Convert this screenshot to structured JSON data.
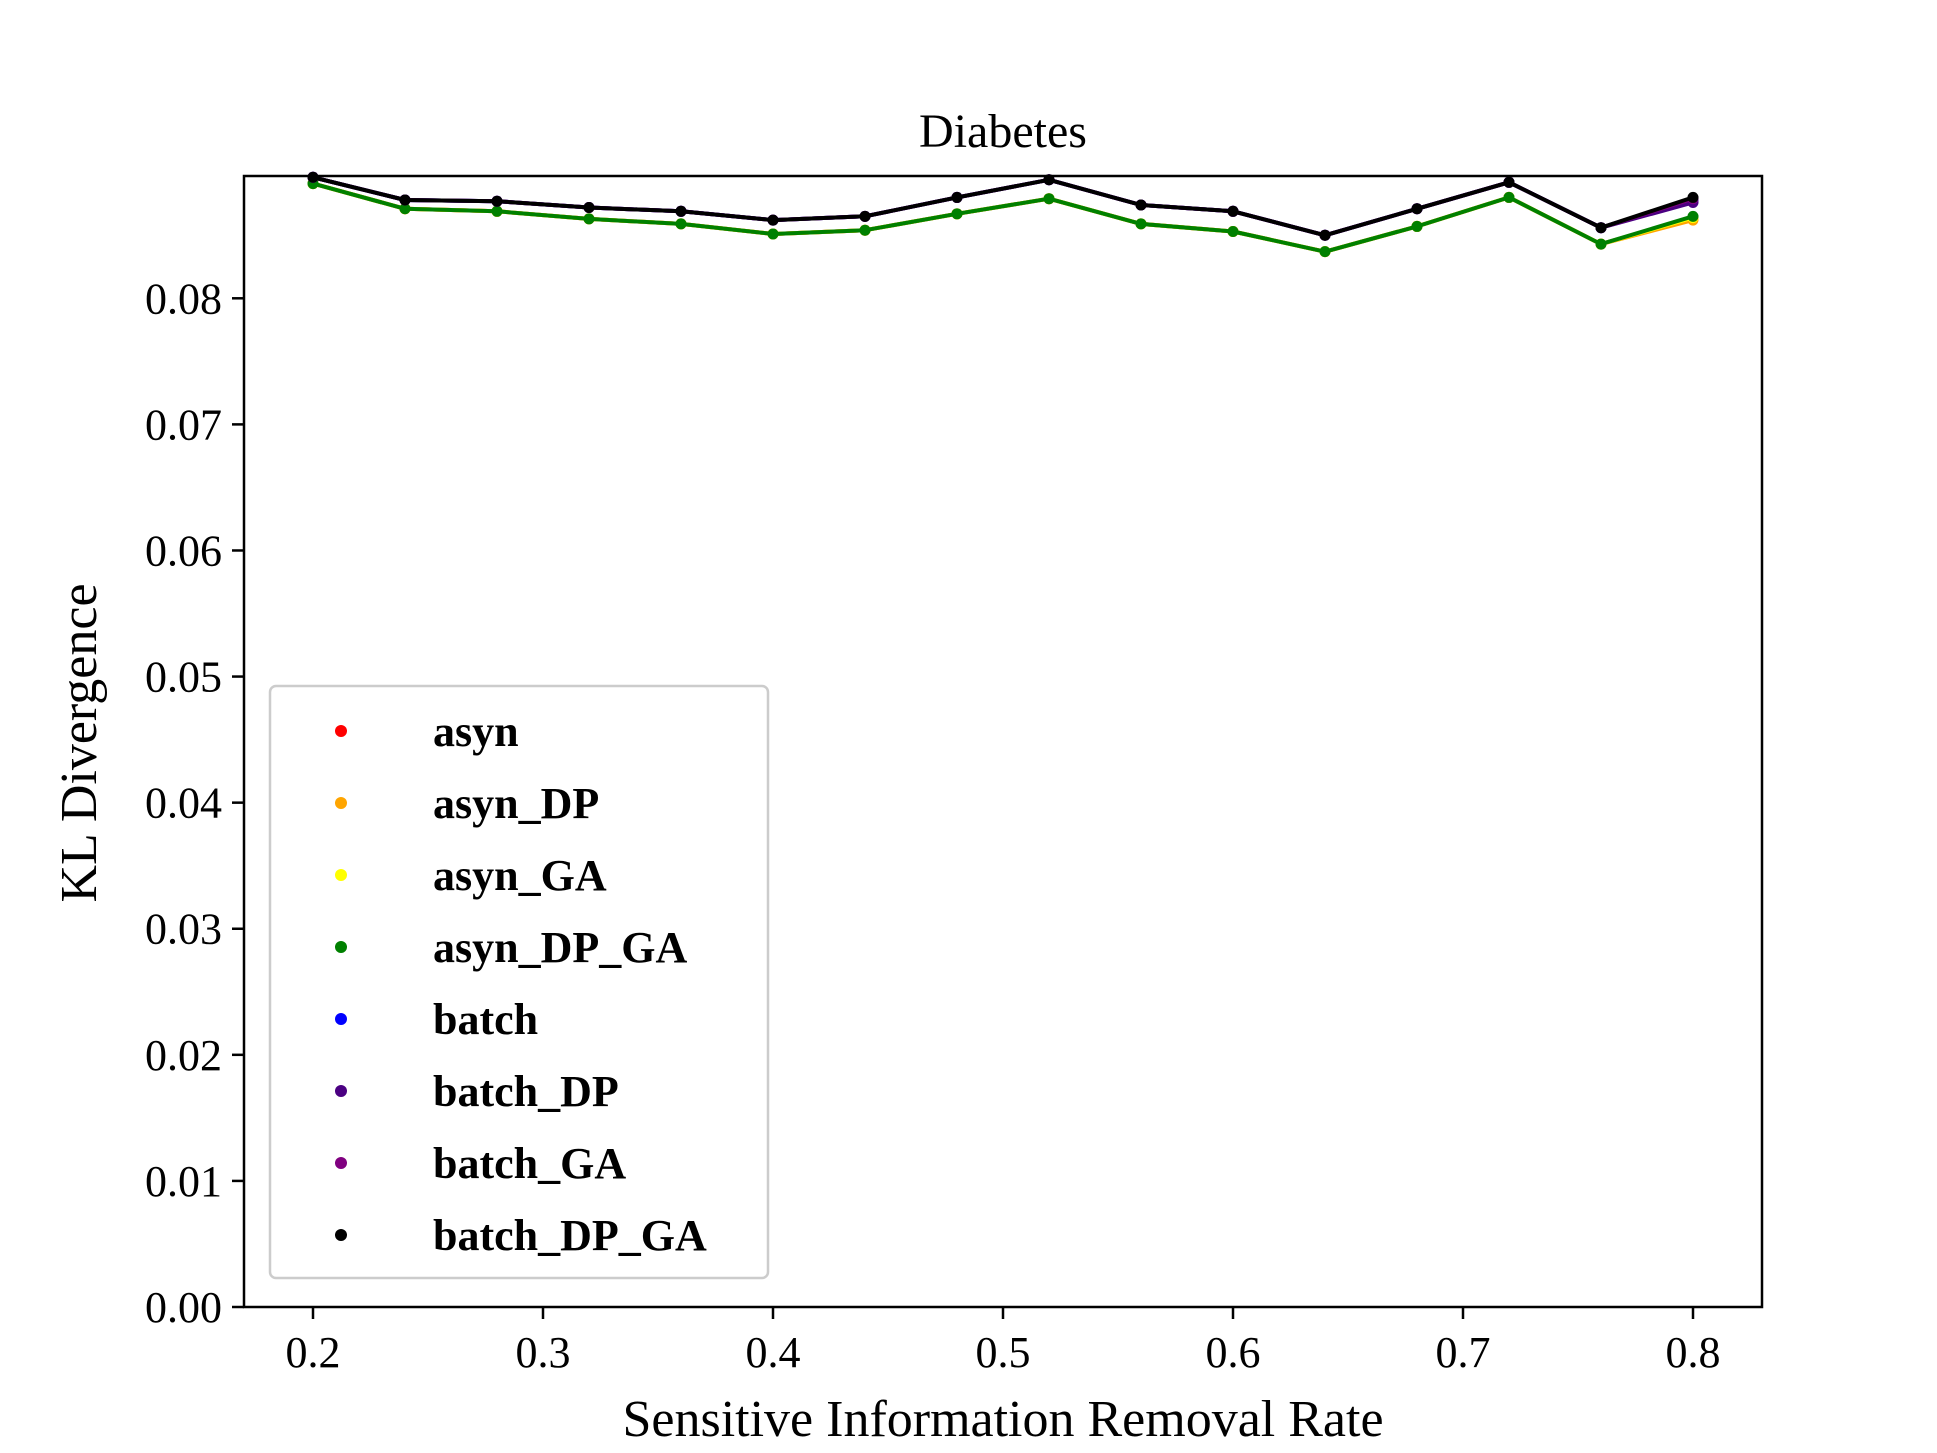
{
  "chart_data": {
    "type": "line",
    "title": "Diabetes",
    "xlabel": "Sensitive Information Removal Rate",
    "ylabel": "KL Divergence",
    "xlim": [
      0.17,
      0.83
    ],
    "ylim": [
      0.0,
      0.0897
    ],
    "xticks": [
      0.2,
      0.3,
      0.4,
      0.5,
      0.6,
      0.7,
      0.8
    ],
    "xtick_labels": [
      "0.2",
      "0.3",
      "0.4",
      "0.5",
      "0.6",
      "0.7",
      "0.8"
    ],
    "yticks": [
      0.0,
      0.01,
      0.02,
      0.03,
      0.04,
      0.05,
      0.06,
      0.07,
      0.08
    ],
    "ytick_labels": [
      "0.00",
      "0.01",
      "0.02",
      "0.03",
      "0.04",
      "0.05",
      "0.06",
      "0.07",
      "0.08"
    ],
    "grid": false,
    "legend_position": "lower-left",
    "x": [
      0.2,
      0.24,
      0.28,
      0.32,
      0.36,
      0.4,
      0.44,
      0.48,
      0.52,
      0.56,
      0.6,
      0.64,
      0.68,
      0.72,
      0.76,
      0.8
    ],
    "series": [
      {
        "name": "asyn",
        "color": "#ff0000",
        "values": [
          0.0891,
          0.0871,
          0.0869,
          0.0863,
          0.0859,
          0.0851,
          0.0854,
          0.0867,
          0.0879,
          0.0859,
          0.0853,
          0.0837,
          0.0857,
          0.088,
          0.0843,
          0.0864
        ]
      },
      {
        "name": "asyn_DP",
        "color": "#ffa500",
        "values": [
          0.0891,
          0.0871,
          0.0869,
          0.0863,
          0.0859,
          0.0851,
          0.0854,
          0.0867,
          0.0879,
          0.0859,
          0.0853,
          0.0837,
          0.0857,
          0.088,
          0.0843,
          0.0862
        ]
      },
      {
        "name": "asyn_GA",
        "color": "#ffff00",
        "values": [
          0.0891,
          0.0871,
          0.0869,
          0.0863,
          0.0859,
          0.0851,
          0.0854,
          0.0867,
          0.0879,
          0.0859,
          0.0853,
          0.0837,
          0.0857,
          0.088,
          0.0843,
          0.0864
        ]
      },
      {
        "name": "asyn_DP_GA",
        "color": "#008000",
        "values": [
          0.0891,
          0.0871,
          0.0869,
          0.0863,
          0.0859,
          0.0851,
          0.0854,
          0.0867,
          0.0879,
          0.0859,
          0.0853,
          0.0837,
          0.0857,
          0.088,
          0.0843,
          0.0865
        ]
      },
      {
        "name": "batch",
        "color": "#0000ff",
        "values": [
          0.0896,
          0.0878,
          0.0877,
          0.0872,
          0.0869,
          0.0862,
          0.0865,
          0.088,
          0.0894,
          0.0874,
          0.0869,
          0.085,
          0.0871,
          0.0892,
          0.0856,
          0.0878
        ]
      },
      {
        "name": "batch_DP",
        "color": "#4b0082",
        "values": [
          0.0896,
          0.0878,
          0.0877,
          0.0872,
          0.0869,
          0.0862,
          0.0865,
          0.088,
          0.0894,
          0.0874,
          0.0869,
          0.085,
          0.0871,
          0.0892,
          0.0856,
          0.0876
        ]
      },
      {
        "name": "batch_GA",
        "color": "#800080",
        "values": [
          0.0896,
          0.0878,
          0.0877,
          0.0872,
          0.0869,
          0.0862,
          0.0865,
          0.088,
          0.0894,
          0.0874,
          0.0869,
          0.085,
          0.0871,
          0.0892,
          0.0856,
          0.0879
        ]
      },
      {
        "name": "batch_DP_GA",
        "color": "#000000",
        "values": [
          0.0896,
          0.0878,
          0.0877,
          0.0872,
          0.0869,
          0.0862,
          0.0865,
          0.088,
          0.0894,
          0.0874,
          0.0869,
          0.085,
          0.0871,
          0.0892,
          0.0856,
          0.088
        ]
      }
    ]
  }
}
